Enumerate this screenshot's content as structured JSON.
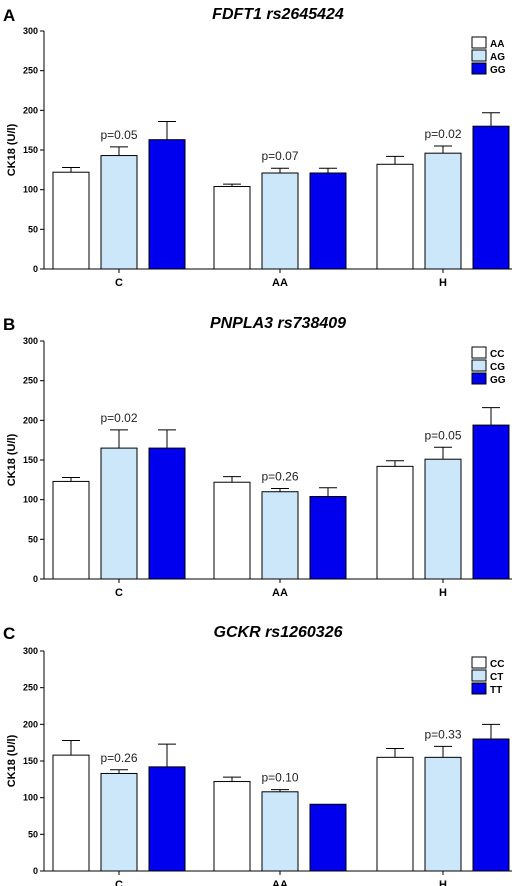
{
  "colors": {
    "geno1": "#ffffff",
    "geno2": "#cce6fa",
    "geno3": "#0000ee",
    "stroke": "#000000"
  },
  "chart_data": [
    {
      "type": "bar",
      "panel_label": "A",
      "title": "FDFT1 rs2645424",
      "ylabel": "CK18 (U/l)",
      "ylim": [
        0,
        300
      ],
      "yticks": [
        0,
        50,
        100,
        150,
        200,
        250,
        300
      ],
      "categories": [
        "C",
        "AA",
        "H"
      ],
      "legend_position": "top-right",
      "series": [
        {
          "name": "AA",
          "values": [
            122,
            104,
            132
          ],
          "errors": [
            6,
            3,
            10
          ]
        },
        {
          "name": "AG",
          "values": [
            143,
            121,
            146
          ],
          "errors": [
            11,
            6,
            9
          ]
        },
        {
          "name": "GG",
          "values": [
            163,
            121,
            180
          ],
          "errors": [
            23,
            6,
            17
          ]
        }
      ],
      "annotations": [
        {
          "text": "p=0.05",
          "category": "C"
        },
        {
          "text": "p=0.07",
          "category": "AA"
        },
        {
          "text": "p=0.02",
          "category": "H"
        }
      ]
    },
    {
      "type": "bar",
      "panel_label": "B",
      "title": "PNPLA3 rs738409",
      "ylabel": "CK18 (U/l)",
      "ylim": [
        0,
        300
      ],
      "yticks": [
        0,
        50,
        100,
        150,
        200,
        250,
        300
      ],
      "categories": [
        "C",
        "AA",
        "H"
      ],
      "legend_position": "top-right",
      "series": [
        {
          "name": "CC",
          "values": [
            123,
            122,
            142
          ],
          "errors": [
            5,
            7,
            7
          ]
        },
        {
          "name": "CG",
          "values": [
            165,
            110,
            151
          ],
          "errors": [
            23,
            4,
            15
          ]
        },
        {
          "name": "GG",
          "values": [
            165,
            104,
            194
          ],
          "errors": [
            23,
            11,
            22
          ]
        }
      ],
      "annotations": [
        {
          "text": "p=0.02",
          "category": "C"
        },
        {
          "text": "p=0.26",
          "category": "AA"
        },
        {
          "text": "p=0.05",
          "category": "H"
        }
      ]
    },
    {
      "type": "bar",
      "panel_label": "C",
      "title": "GCKR rs1260326",
      "ylabel": "CK18 (U/l)",
      "ylim": [
        0,
        300
      ],
      "yticks": [
        0,
        50,
        100,
        150,
        200,
        250,
        300
      ],
      "categories": [
        "C",
        "AA",
        "H"
      ],
      "legend_position": "top-right",
      "series": [
        {
          "name": "CC",
          "values": [
            158,
            122,
            155
          ],
          "errors": [
            20,
            6,
            12
          ]
        },
        {
          "name": "CT",
          "values": [
            133,
            108,
            155
          ],
          "errors": [
            5,
            3,
            15
          ]
        },
        {
          "name": "TT",
          "values": [
            142,
            91,
            180
          ],
          "errors": [
            31,
            0,
            20
          ]
        }
      ],
      "annotations": [
        {
          "text": "p=0.26",
          "category": "C"
        },
        {
          "text": "p=0.10",
          "category": "AA"
        },
        {
          "text": "p=0.33",
          "category": "H"
        }
      ]
    }
  ]
}
